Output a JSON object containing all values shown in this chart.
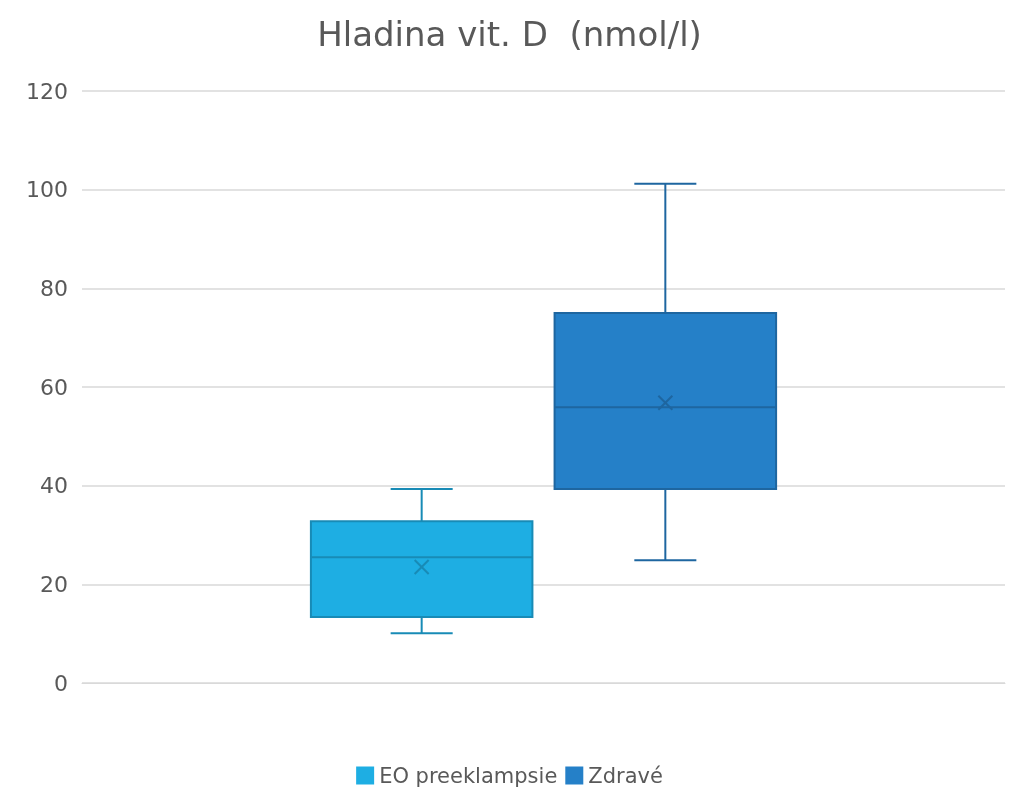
{
  "chart_data": {
    "type": "box",
    "title": "Hladina vit. D  (nmol/l)",
    "categories": [
      null
    ],
    "series": [
      {
        "name": "EO preeklampsie",
        "color": "#1eaee3",
        "boxes": [
          {
            "low": 10.1,
            "q1": 13.4,
            "median": 25.5,
            "q3": 32.8,
            "high": 39.3,
            "mean": 23.5
          }
        ]
      },
      {
        "name": "Zdravé",
        "color": "#2580c8",
        "boxes": [
          {
            "low": 24.9,
            "q1": 39.3,
            "median": 55.9,
            "q3": 75.0,
            "high": 101.2,
            "mean": 56.8
          }
        ]
      }
    ],
    "ylim": [
      0,
      120
    ],
    "yticks": [
      0,
      20,
      40,
      60,
      80,
      100,
      120
    ],
    "grid": "y",
    "legend": "bottom"
  }
}
